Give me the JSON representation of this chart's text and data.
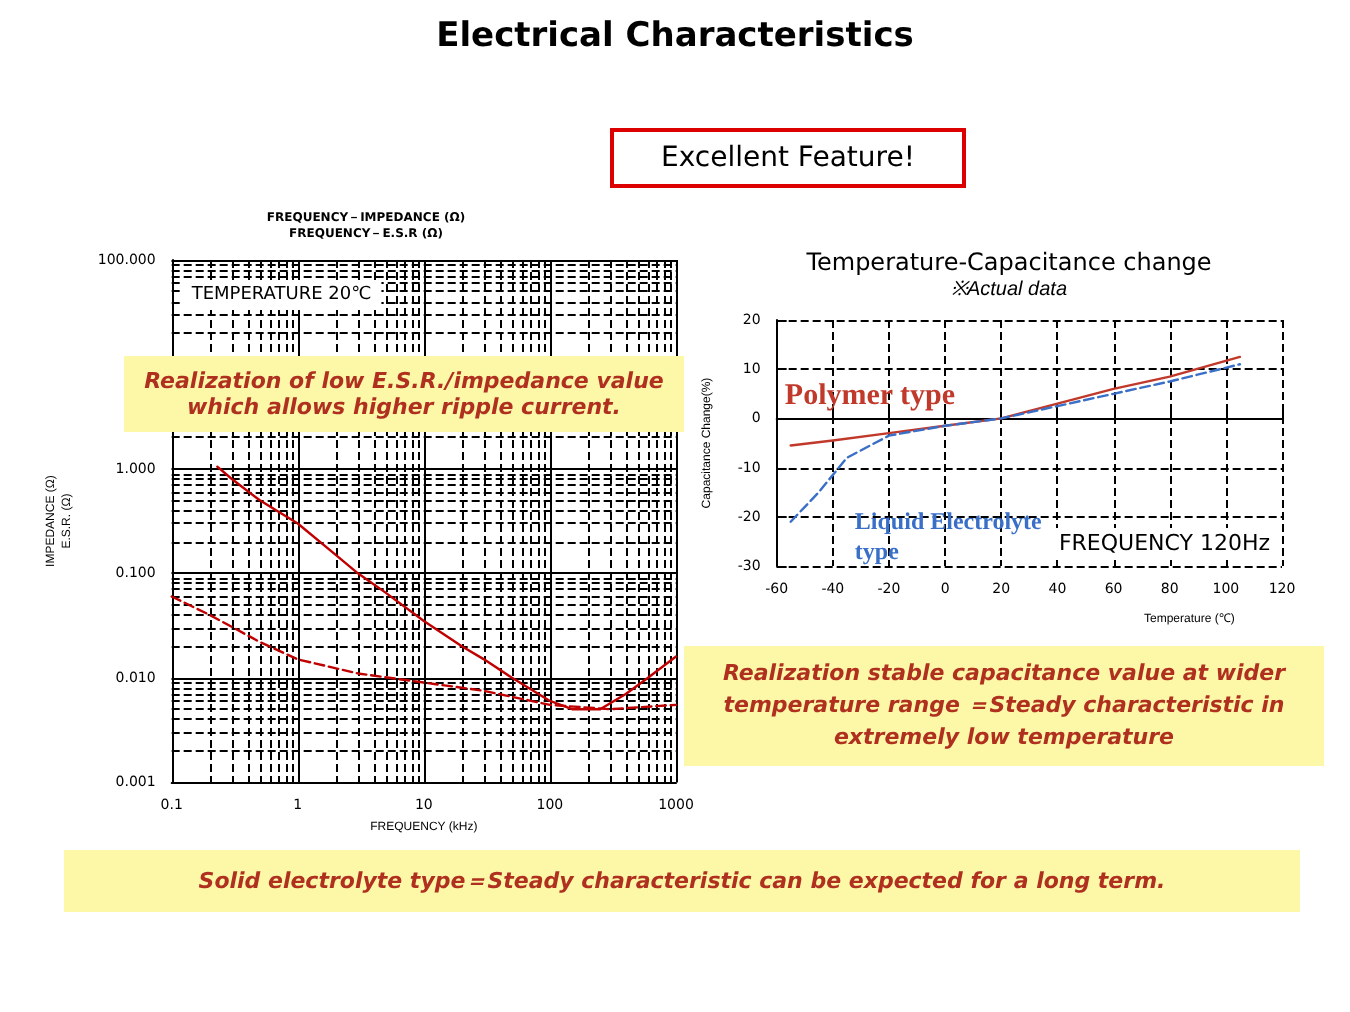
{
  "chart_data": [
    {
      "type": "line",
      "title": "FREQUENCY－IMPEDANCE (Ω)\nFREQUENCY－E.S.R (Ω)",
      "xlabel": "FREQUENCY (kHz)",
      "ylabel": "IMPEDANCE (Ω)\nE.S.R. (Ω)",
      "log": "xy",
      "grid": true,
      "legend": false,
      "marker": "none",
      "xlim": [
        0.1,
        1000
      ],
      "xticks": [
        {
          "value": 0.1,
          "label": "0.1"
        },
        1,
        10,
        100,
        {
          "value": 1000,
          "label": "1000"
        }
      ],
      "ylim": [
        0.001,
        100
      ],
      "yticks": [
        {
          "value": 0.001,
          "label": "0.001"
        },
        {
          "value": 0.01,
          "label": "0.010"
        },
        {
          "value": 0.1,
          "label": "0.100"
        },
        {
          "value": 1,
          "label": "1.000"
        },
        {
          "value": 10,
          "label": null
        },
        {
          "value": 100,
          "label": "100.000"
        }
      ],
      "series": [
        {
          "color": "#c00000",
          "line_style": "solid",
          "x": [
            0.23,
            0.3,
            0.5,
            1,
            2,
            3,
            5,
            10,
            20,
            30,
            50,
            100,
            150,
            250,
            400,
            600,
            1000
          ],
          "values": [
            1.05,
            0.8,
            0.5,
            0.3,
            0.15,
            0.1,
            0.065,
            0.035,
            0.02,
            0.015,
            0.01,
            0.006,
            0.005,
            0.005,
            0.007,
            0.01,
            0.016
          ]
        },
        {
          "color": "#c00000",
          "line_style": "dashed",
          "x": [
            0.1,
            0.2,
            0.5,
            1,
            3,
            10,
            30,
            100,
            300,
            1000
          ],
          "values": [
            0.06,
            0.04,
            0.022,
            0.015,
            0.011,
            0.009,
            0.0075,
            0.0055,
            0.005,
            0.0055
          ]
        }
      ],
      "annotations": [
        "TEMPERATURE 20℃",
        "Electrical Characteristics",
        "Excellent Feature!",
        "Realization of low E.S.R./impedance value which allows higher ripple current.",
        "Solid electrolyte type＝Steady characteristic can be expected for a long term."
      ]
    },
    {
      "type": "line",
      "title": "Temperature-Capacitance change",
      "subtitle": "※Actual data",
      "xlabel": "Temperature (℃)",
      "ylabel": "Capacitance Change(%)",
      "grid": true,
      "legend": false,
      "marker": "none",
      "xlim": [
        -60,
        120
      ],
      "xticks": [
        -60,
        -40,
        -20,
        0,
        20,
        40,
        60,
        80,
        100,
        120
      ],
      "ylim": [
        -30,
        20
      ],
      "yticks": [
        -30,
        -20,
        -10,
        0,
        10,
        20
      ],
      "series": [
        {
          "name": "Polymer type",
          "color": "#c0392b",
          "line_style": "solid",
          "x": [
            -55,
            -40,
            -20,
            0,
            20,
            40,
            60,
            80,
            105
          ],
          "values": [
            -5.5,
            -4.5,
            -3,
            -1.5,
            0,
            3,
            6,
            8.5,
            12.5
          ]
        },
        {
          "name": "Liquid Electrolyte type",
          "color": "#3a6fc8",
          "line_style": "dashed",
          "x": [
            -55,
            -45,
            -35,
            -20,
            0,
            20,
            40,
            60,
            80,
            105
          ],
          "values": [
            -21,
            -15,
            -8,
            -3.5,
            -1.5,
            0,
            2.5,
            5,
            7.5,
            11
          ]
        }
      ],
      "annotations": [
        "FREQUENCY 120Hz",
        "Realization stable capacitance value at wider temperature range ＝Steady characteristic in extremely low temperature"
      ]
    }
  ]
}
